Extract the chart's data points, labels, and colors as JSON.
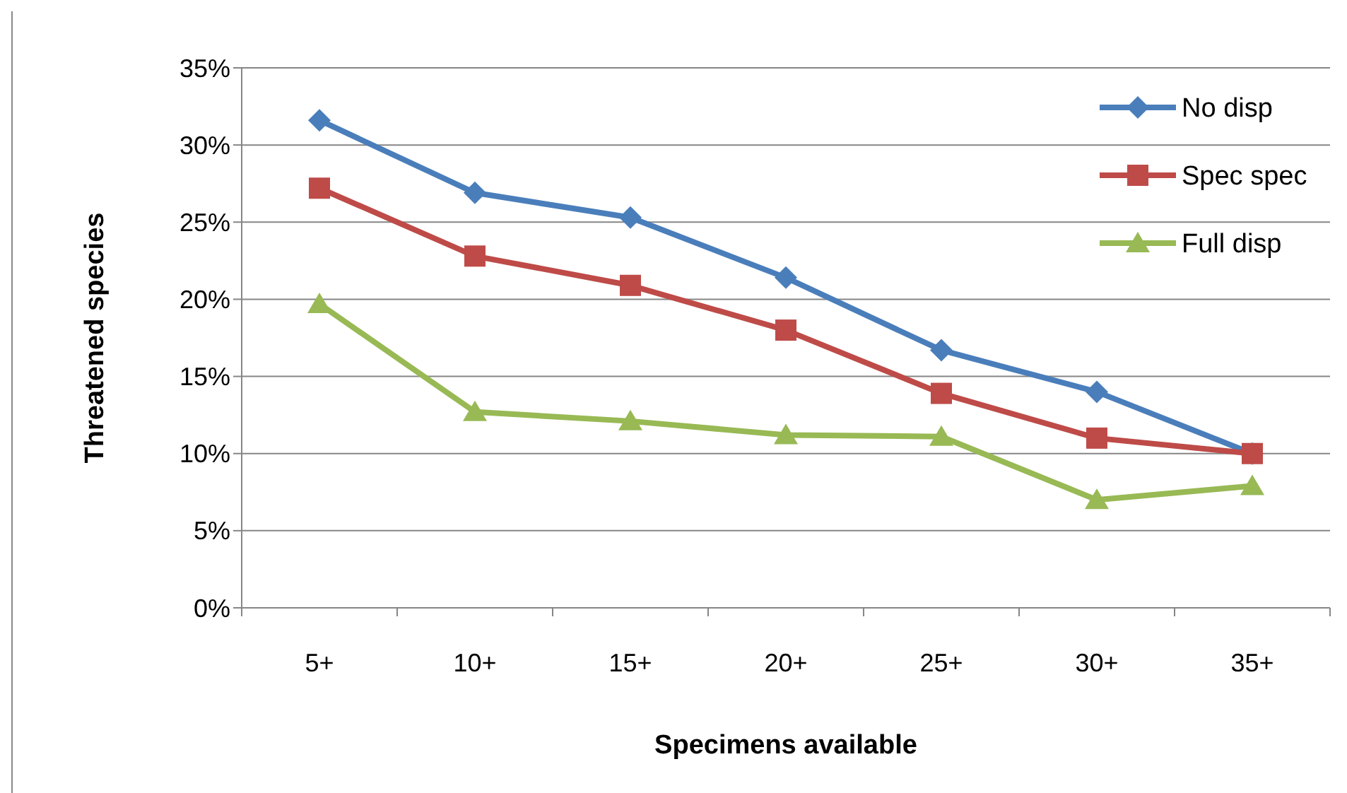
{
  "chart_data": {
    "type": "line",
    "xlabel": "Specimens available",
    "ylabel": "Threatened species",
    "categories": [
      "5+",
      "10+",
      "15+",
      "20+",
      "25+",
      "30+",
      "35+"
    ],
    "series": [
      {
        "name": "No disp",
        "color": "#4a7ebb",
        "marker": "diamond",
        "values": [
          31.6,
          26.9,
          25.3,
          21.4,
          16.7,
          14.0,
          10.0
        ]
      },
      {
        "name": "Spec spec",
        "color": "#be4b48",
        "marker": "square",
        "values": [
          27.2,
          22.8,
          20.9,
          18.0,
          13.9,
          11.0,
          10.0
        ]
      },
      {
        "name": "Full disp",
        "color": "#98b954",
        "marker": "triangle",
        "values": [
          19.7,
          12.7,
          12.1,
          11.2,
          11.1,
          7.0,
          7.9
        ]
      }
    ],
    "ylim": [
      0,
      35
    ],
    "yticks": [
      {
        "value": 0,
        "label": "0%"
      },
      {
        "value": 5,
        "label": "5%"
      },
      {
        "value": 10,
        "label": "10%"
      },
      {
        "value": 15,
        "label": "15%"
      },
      {
        "value": 20,
        "label": "20%"
      },
      {
        "value": 25,
        "label": "25%"
      },
      {
        "value": 30,
        "label": "30%"
      },
      {
        "value": 35,
        "label": "35%"
      }
    ],
    "grid": "y",
    "legend": "top right"
  }
}
